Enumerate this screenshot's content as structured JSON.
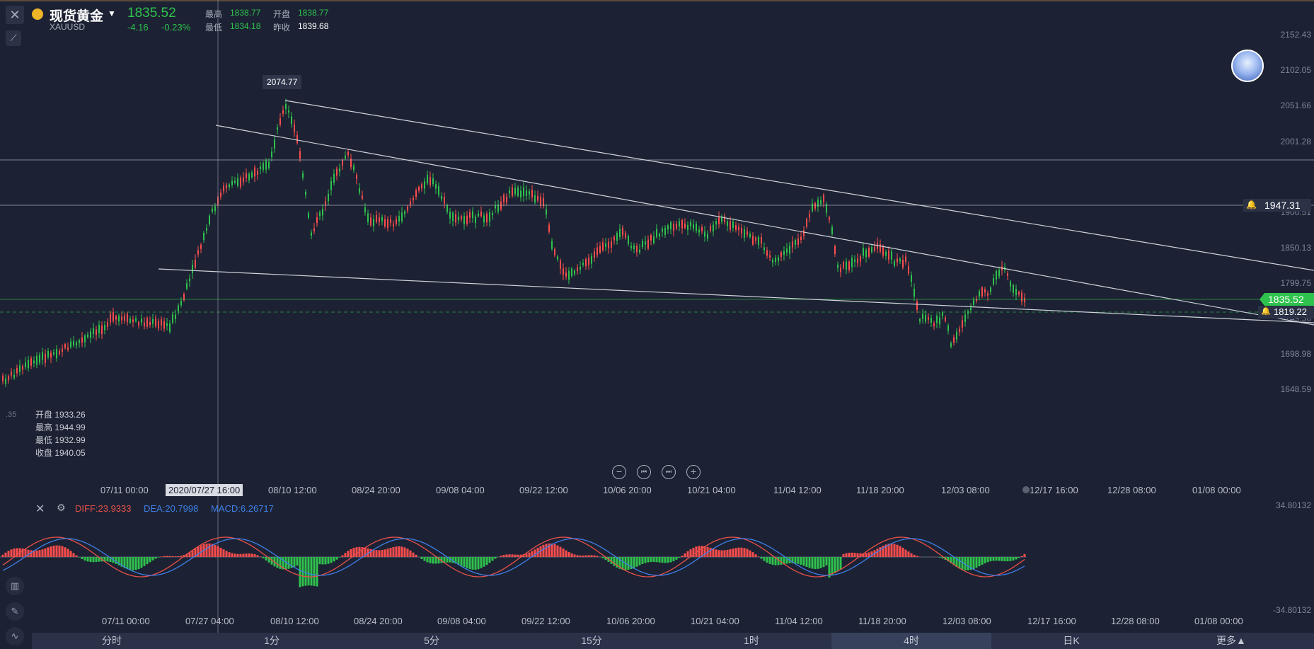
{
  "header": {
    "symbol_name": "现货黄金",
    "symbol_code": "XAUUSD",
    "price": "1835.52",
    "change": "-4.16",
    "change_pct": "-0.23%",
    "high_label": "最高",
    "high_value": "1838.77",
    "open_label": "开盘",
    "open_value": "1838.77",
    "low_label": "最低",
    "low_value": "1834.18",
    "prev_close_label": "昨收",
    "prev_close_value": "1839.68"
  },
  "price_axis": [
    "2152.43",
    "2102.05",
    "2051.66",
    "2001.28",
    "1900.51",
    "1850.13",
    "1799.75",
    "1749.36",
    "1698.98",
    "1648.59"
  ],
  "price_axis_partial": ".35",
  "price_tags": {
    "current": "1835.52",
    "alert_upper": "1947.31",
    "alert_lower": "1819.22",
    "peak": "2074.77"
  },
  "ohlc_panel": {
    "open": "开盘 1933.26",
    "high": "最高 1944.99",
    "low": "最低 1932.99",
    "close": "收盘 1940.05"
  },
  "time_axis": [
    "07/11 00:00",
    "08/10 12:00",
    "08/24 20:00",
    "09/08 04:00",
    "09/22 12:00",
    "10/06 20:00",
    "10/21 04:00",
    "11/04 12:00",
    "11/18 20:00",
    "12/03 08:00",
    "12/17 16:00",
    "12/28 08:00",
    "01/08 00:00"
  ],
  "crosshair_time": "2020/07/27 16:00",
  "macd": {
    "diff": "DIFF:23.9333",
    "dea": "DEA:20.7998",
    "macd": "MACD:6.26717",
    "axis_top": "34.80132",
    "axis_bottom": "-34.80132"
  },
  "macd_time_axis": [
    "07/11 00:00",
    "07/27 04:00",
    "08/10 12:00",
    "08/24 20:00",
    "09/08 04:00",
    "09/22 12:00",
    "10/06 20:00",
    "10/21 04:00",
    "11/04 12:00",
    "11/18 20:00",
    "12/03 08:00",
    "12/17 16:00",
    "12/28 08:00",
    "01/08 00:00"
  ],
  "controls": {
    "zoom_out": "−",
    "prev": "⏮",
    "next": "⏭",
    "zoom_in": "+"
  },
  "timeframes": [
    "分时",
    "1分",
    "5分",
    "15分",
    "1时",
    "4时",
    "日K",
    "更多▲"
  ],
  "colors": {
    "up": "#ff4d4d",
    "down": "#2fc24d",
    "background": "#1c2233",
    "diff_line": "#e8504a",
    "dea_line": "#3f7fe8"
  }
}
